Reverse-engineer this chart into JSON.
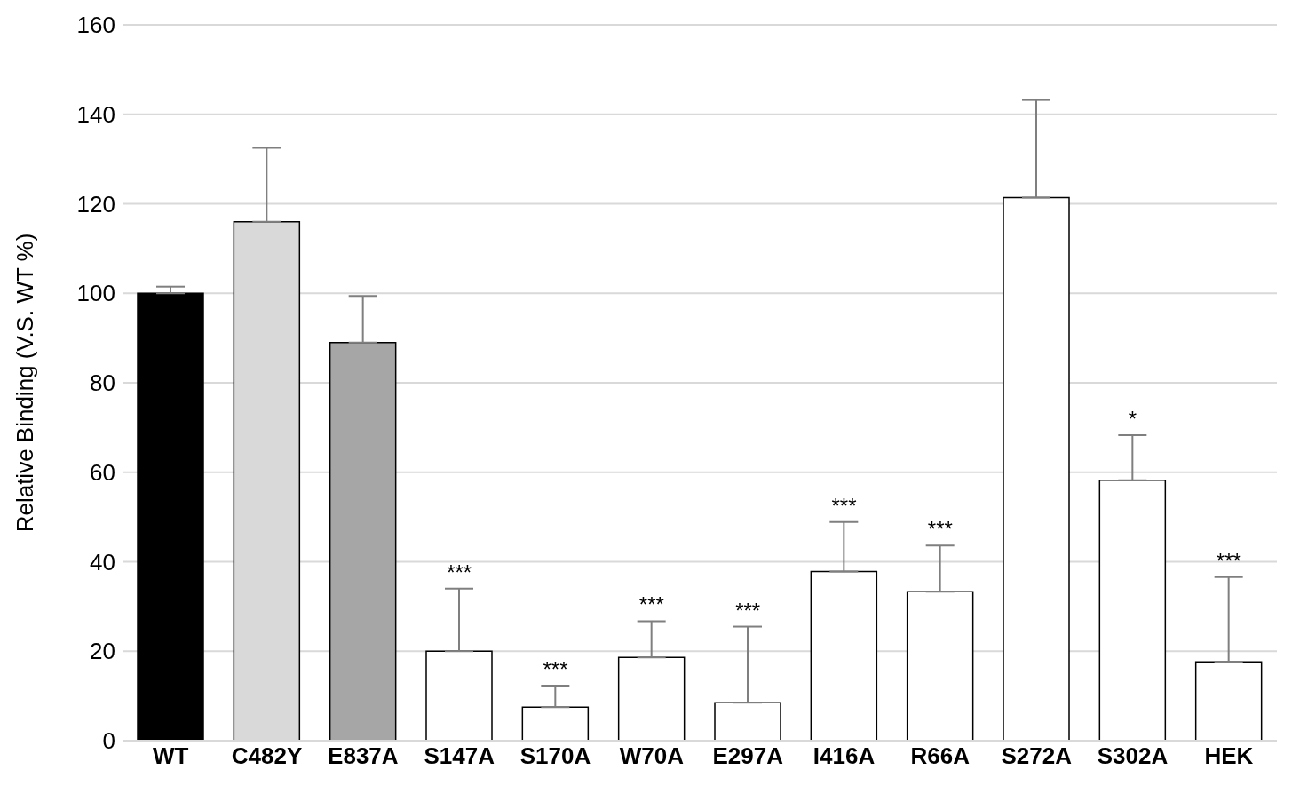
{
  "chart_data": {
    "type": "bar",
    "ylabel": "Relative Binding (V.S. WT %)",
    "categories": [
      "WT",
      "C482Y",
      "E837A",
      "S147A",
      "S170A",
      "W70A",
      "E297A",
      "I416A",
      "R66A",
      "S272A",
      "S302A",
      "HEK"
    ],
    "values": [
      100,
      116,
      89,
      20,
      7.5,
      18.6,
      8.5,
      37.8,
      33.3,
      121.4,
      58.2,
      17.6
    ],
    "colors": [
      "#000000",
      "#d9d9d9",
      "#a6a6a6",
      "#ffffff",
      "#ffffff",
      "#ffffff",
      "#ffffff",
      "#ffffff",
      "#ffffff",
      "#ffffff",
      "#ffffff",
      "#ffffff"
    ],
    "errors": [
      [
        100,
        101.5
      ],
      [
        116,
        132.5
      ],
      [
        89,
        99.4
      ],
      [
        20,
        34
      ],
      [
        7.5,
        12.3
      ],
      [
        18.6,
        26.7
      ],
      [
        8.5,
        25.5
      ],
      [
        37.8,
        48.9
      ],
      [
        33.3,
        43.6
      ],
      [
        121.4,
        143.2
      ],
      [
        58.2,
        68.3
      ],
      [
        17.6,
        36.6
      ]
    ],
    "ylim": [
      0,
      160
    ],
    "yticks": [
      0,
      20,
      40,
      60,
      80,
      100,
      120,
      140,
      160
    ],
    "grid": "y",
    "annotations": [
      {
        "text": "***",
        "x": "S147A",
        "y": 34
      },
      {
        "text": "***",
        "x": "S170A",
        "y": 12.3
      },
      {
        "text": "***",
        "x": "W70A",
        "y": 26.7
      },
      {
        "text": "***",
        "x": "E297A",
        "y": 25.5
      },
      {
        "text": "***",
        "x": "I416A",
        "y": 48.9
      },
      {
        "text": "***",
        "x": "R66A",
        "y": 43.6
      },
      {
        "text": "*",
        "x": "S302A",
        "y": 68.3
      },
      {
        "text": "***",
        "x": "HEK",
        "y": 36.6
      }
    ]
  }
}
